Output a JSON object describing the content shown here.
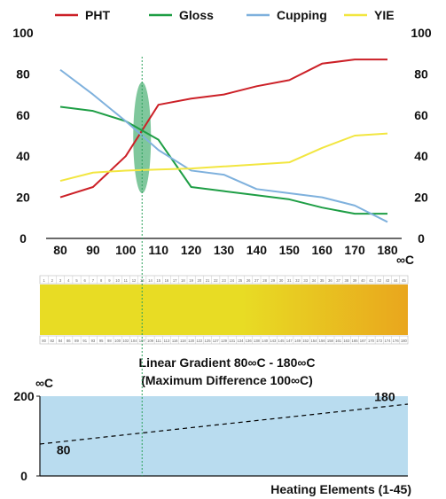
{
  "chart_data": [
    {
      "type": "line",
      "x": [
        80,
        90,
        100,
        110,
        120,
        130,
        140,
        150,
        160,
        170,
        180
      ],
      "xlabel": "∞C",
      "ylim": [
        0,
        100
      ],
      "yticks": [
        0,
        20,
        40,
        60,
        80,
        100
      ],
      "legend_position": "top",
      "grid": false,
      "series": [
        {
          "name": "PHT",
          "color": "#cc2027",
          "values": [
            20,
            25,
            40,
            65,
            68,
            70,
            74,
            77,
            85,
            87,
            87
          ]
        },
        {
          "name": "Gloss",
          "color": "#1e9e45",
          "values": [
            64,
            62,
            57,
            48,
            25,
            23,
            21,
            19,
            15,
            12,
            12
          ]
        },
        {
          "name": "Cupping",
          "color": "#7fb1dd",
          "values": [
            82,
            70,
            57,
            43,
            33,
            31,
            24,
            22,
            20,
            16,
            8
          ]
        },
        {
          "name": "YIE",
          "color": "#f2e640",
          "values": [
            28,
            32,
            33,
            33.5,
            34,
            35,
            36,
            37,
            44,
            50,
            51
          ]
        }
      ],
      "marker_x": 105,
      "marker_ellipse": {
        "center_y": 49,
        "half_height_y": 27,
        "color": "#5fb983"
      }
    },
    {
      "type": "heatmap",
      "gradient_color_start": "#e8dc24",
      "gradient_color_end": "#e9a61d",
      "top_numbers": [
        "1",
        "2",
        "3",
        "4",
        "5",
        "6",
        "7",
        "8",
        "9",
        "10",
        "11",
        "12",
        "13",
        "14",
        "15",
        "16",
        "17",
        "18",
        "19",
        "20",
        "21",
        "22",
        "23",
        "24",
        "25",
        "26",
        "27",
        "28",
        "29",
        "30",
        "31",
        "32",
        "33",
        "34",
        "35",
        "36",
        "37",
        "38",
        "39",
        "40",
        "41",
        "42",
        "43",
        "44",
        "45"
      ],
      "bottom_numbers": [
        "80",
        "82",
        "84",
        "86",
        "89",
        "91",
        "93",
        "95",
        "98",
        "100",
        "102",
        "104",
        "107",
        "109",
        "111",
        "113",
        "116",
        "118",
        "120",
        "122",
        "125",
        "127",
        "129",
        "131",
        "134",
        "136",
        "138",
        "140",
        "143",
        "145",
        "147",
        "149",
        "152",
        "154",
        "156",
        "158",
        "161",
        "163",
        "165",
        "167",
        "170",
        "172",
        "174",
        "176",
        "180"
      ],
      "caption_line1": "Linear Gradient 80∞C - 180∞C",
      "caption_line2": "(Maximum Difference 100∞C)"
    },
    {
      "type": "line",
      "ylabel": "∞C",
      "xlabel": "Heating Elements (1-45)",
      "x_range": [
        1,
        45
      ],
      "ylim": [
        0,
        200
      ],
      "yticks": [
        0,
        200
      ],
      "background_color": "#b9dcef",
      "series": [
        {
          "style": "dashed",
          "color": "#000000",
          "x": [
            1,
            45
          ],
          "values": [
            80,
            180
          ]
        }
      ],
      "annotations": [
        {
          "text": "80",
          "x": 3,
          "y": 55
        },
        {
          "text": "180",
          "x": 41,
          "y": 188
        }
      ]
    }
  ]
}
